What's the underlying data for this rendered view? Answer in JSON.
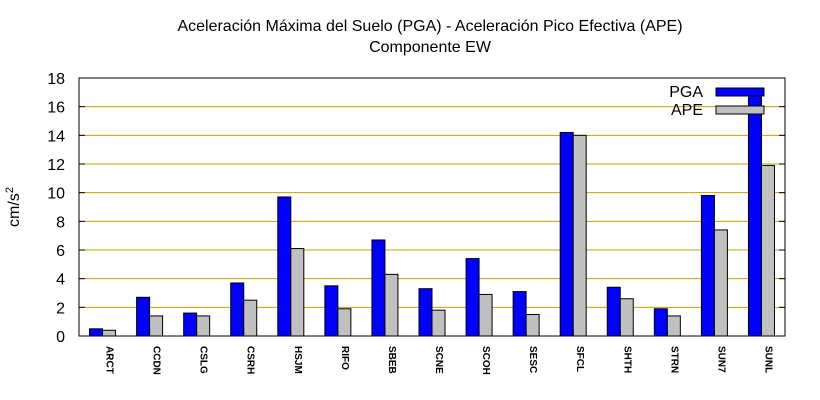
{
  "chart_data": {
    "type": "bar",
    "title": "Aceleración Máxima del Suelo (PGA) -  Aceleración Pico Efectiva (APE)",
    "subtitle": "Componente EW",
    "xlabel": "",
    "ylabel_base": "cm/s",
    "ylabel_sup": "2",
    "ylim": [
      0,
      18
    ],
    "yticks": [
      0,
      2,
      4,
      6,
      8,
      10,
      12,
      14,
      16,
      18
    ],
    "grid": true,
    "grid_color": "#c8a000",
    "legend_position": "top-right",
    "categories": [
      "ARCT",
      "CCDN",
      "CSLG",
      "CSRH",
      "HSJM",
      "RIFO",
      "SBEB",
      "SCNE",
      "SCOH",
      "SESC",
      "SFCL",
      "SHTH",
      "STRN",
      "SUN7",
      "SUNL"
    ],
    "series": [
      {
        "name": "PGA",
        "color": "#0000ff",
        "values": [
          0.5,
          2.7,
          1.6,
          3.7,
          9.7,
          3.5,
          6.7,
          3.3,
          5.4,
          3.1,
          14.2,
          3.4,
          1.9,
          9.8,
          17.2
        ]
      },
      {
        "name": "APE",
        "color": "#c0c0c0",
        "values": [
          0.4,
          1.4,
          1.4,
          2.5,
          6.1,
          1.9,
          4.3,
          1.8,
          2.9,
          1.5,
          14.0,
          2.6,
          1.4,
          7.4,
          11.9
        ]
      }
    ]
  }
}
